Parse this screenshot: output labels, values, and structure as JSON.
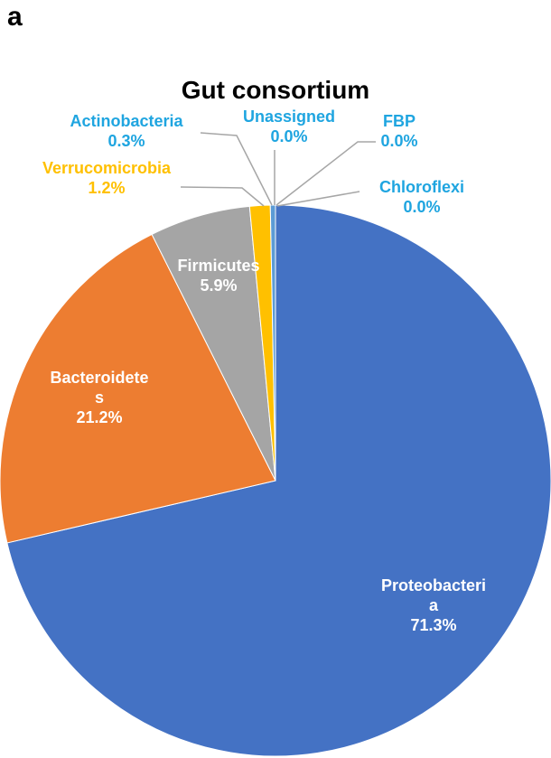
{
  "panel_label": "a",
  "chart_data": {
    "type": "pie",
    "title": "Gut consortium",
    "categories": [
      "Proteobacteria",
      "Bacteroidetes",
      "Firmicutes",
      "Verrucomicrobia",
      "Actinobacteria",
      "Unassigned",
      "FBP",
      "Chloroflexi"
    ],
    "values": [
      71.3,
      21.2,
      5.9,
      1.2,
      0.3,
      0.0,
      0.0,
      0.0
    ],
    "value_labels": [
      "71.3%",
      "21.2%",
      "5.9%",
      "1.2%",
      "0.3%",
      "0.0%",
      "0.0%",
      "0.0%"
    ],
    "colors": [
      "#4472c4",
      "#ed7d31",
      "#a5a5a5",
      "#ffc000",
      "#5b9bd5",
      "#70ad47",
      "#264478",
      "#9e480e"
    ],
    "label_colors": [
      "#ffffff",
      "#ffffff",
      "#ffffff",
      "#ffc000",
      "#1fa5e0",
      "#1fa5e0",
      "#1fa5e0",
      "#1fa5e0"
    ]
  }
}
